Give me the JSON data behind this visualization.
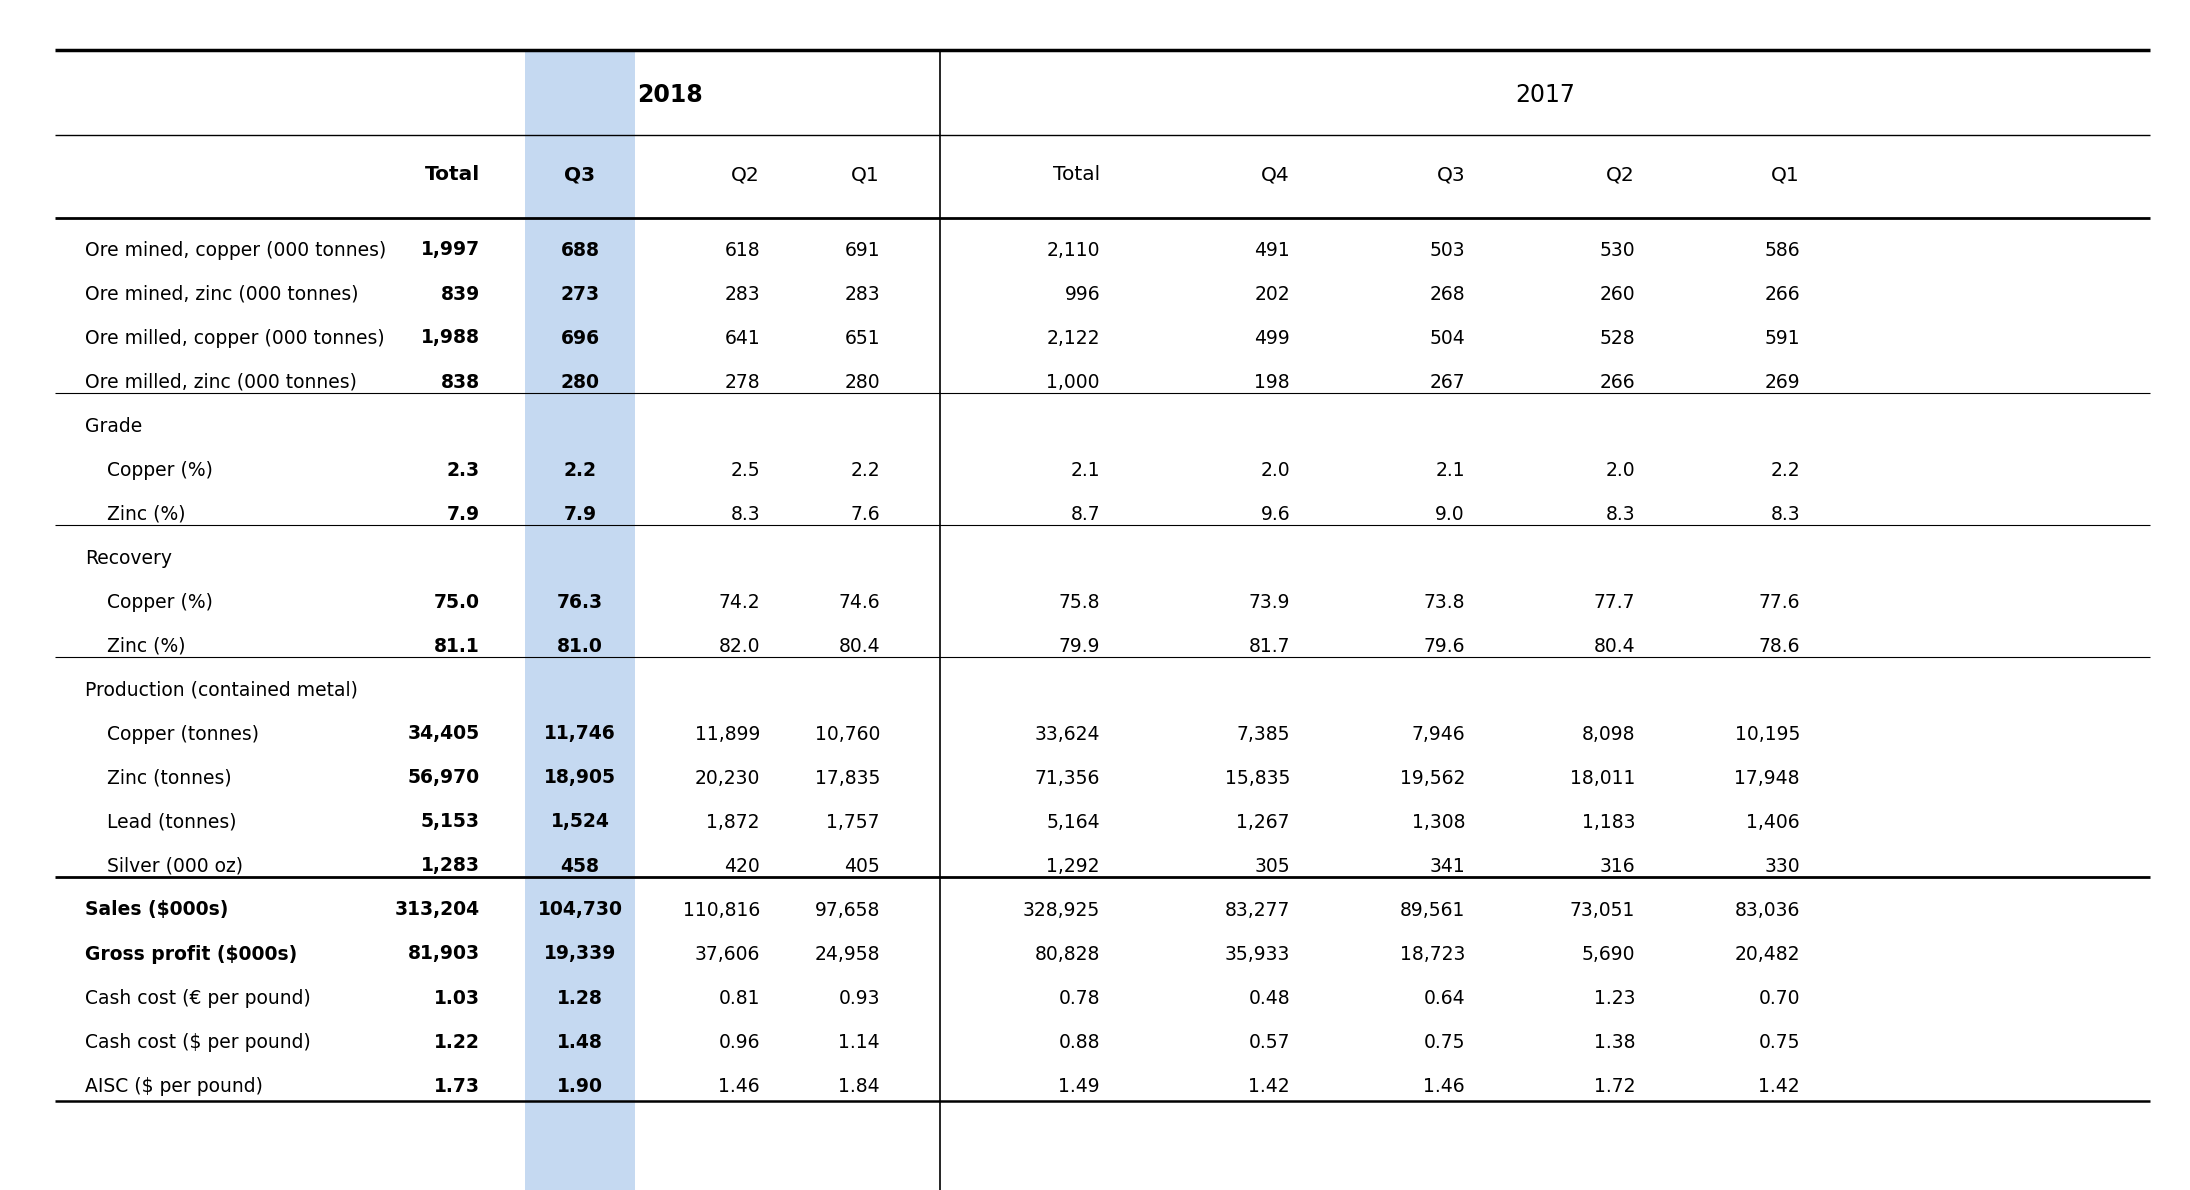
{
  "highlight_color": "#c5d9f1",
  "bg_color": "#ffffff",
  "text_color": "#000000",
  "year_2018": "2018",
  "year_2017": "2017",
  "col_headers": [
    "Total",
    "Q3",
    "Q2",
    "Q1",
    "Total",
    "Q4",
    "Q3",
    "Q2",
    "Q1"
  ],
  "rows": [
    {
      "label": "Ore mined, copper (000 tonnes)",
      "indent": false,
      "section": false,
      "bold_label": false,
      "bold_total": true,
      "bold_q3": true,
      "values": [
        "1,997",
        "688",
        "618",
        "691",
        "2,110",
        "491",
        "503",
        "530",
        "586"
      ]
    },
    {
      "label": "Ore mined, zinc (000 tonnes)",
      "indent": false,
      "section": false,
      "bold_label": false,
      "bold_total": true,
      "bold_q3": true,
      "values": [
        "839",
        "273",
        "283",
        "283",
        "996",
        "202",
        "268",
        "260",
        "266"
      ]
    },
    {
      "label": "Ore milled, copper (000 tonnes)",
      "indent": false,
      "section": false,
      "bold_label": false,
      "bold_total": true,
      "bold_q3": true,
      "values": [
        "1,988",
        "696",
        "641",
        "651",
        "2,122",
        "499",
        "504",
        "528",
        "591"
      ]
    },
    {
      "label": "Ore milled, zinc (000 tonnes)",
      "indent": false,
      "section": false,
      "bold_label": false,
      "bold_total": true,
      "bold_q3": true,
      "values": [
        "838",
        "280",
        "278",
        "280",
        "1,000",
        "198",
        "267",
        "266",
        "269"
      ]
    },
    {
      "label": "Grade",
      "indent": false,
      "section": true,
      "bold_label": false,
      "bold_total": false,
      "bold_q3": false,
      "values": [
        "",
        "",
        "",
        "",
        "",
        "",
        "",
        "",
        ""
      ]
    },
    {
      "label": "Copper (%)",
      "indent": true,
      "section": false,
      "bold_label": false,
      "bold_total": true,
      "bold_q3": true,
      "values": [
        "2.3",
        "2.2",
        "2.5",
        "2.2",
        "2.1",
        "2.0",
        "2.1",
        "2.0",
        "2.2"
      ]
    },
    {
      "label": "Zinc (%)",
      "indent": true,
      "section": false,
      "bold_label": false,
      "bold_total": true,
      "bold_q3": true,
      "values": [
        "7.9",
        "7.9",
        "8.3",
        "7.6",
        "8.7",
        "9.6",
        "9.0",
        "8.3",
        "8.3"
      ]
    },
    {
      "label": "Recovery",
      "indent": false,
      "section": true,
      "bold_label": false,
      "bold_total": false,
      "bold_q3": false,
      "values": [
        "",
        "",
        "",
        "",
        "",
        "",
        "",
        "",
        ""
      ]
    },
    {
      "label": "Copper (%)",
      "indent": true,
      "section": false,
      "bold_label": false,
      "bold_total": true,
      "bold_q3": true,
      "values": [
        "75.0",
        "76.3",
        "74.2",
        "74.6",
        "75.8",
        "73.9",
        "73.8",
        "77.7",
        "77.6"
      ]
    },
    {
      "label": "Zinc (%)",
      "indent": true,
      "section": false,
      "bold_label": false,
      "bold_total": true,
      "bold_q3": true,
      "values": [
        "81.1",
        "81.0",
        "82.0",
        "80.4",
        "79.9",
        "81.7",
        "79.6",
        "80.4",
        "78.6"
      ]
    },
    {
      "label": "Production (contained metal)",
      "indent": false,
      "section": true,
      "bold_label": false,
      "bold_total": false,
      "bold_q3": false,
      "values": [
        "",
        "",
        "",
        "",
        "",
        "",
        "",
        "",
        ""
      ]
    },
    {
      "label": "Copper (tonnes)",
      "indent": true,
      "section": false,
      "bold_label": false,
      "bold_total": true,
      "bold_q3": true,
      "values": [
        "34,405",
        "11,746",
        "11,899",
        "10,760",
        "33,624",
        "7,385",
        "7,946",
        "8,098",
        "10,195"
      ]
    },
    {
      "label": "Zinc (tonnes)",
      "indent": true,
      "section": false,
      "bold_label": false,
      "bold_total": true,
      "bold_q3": true,
      "values": [
        "56,970",
        "18,905",
        "20,230",
        "17,835",
        "71,356",
        "15,835",
        "19,562",
        "18,011",
        "17,948"
      ]
    },
    {
      "label": "Lead (tonnes)",
      "indent": true,
      "section": false,
      "bold_label": false,
      "bold_total": true,
      "bold_q3": true,
      "values": [
        "5,153",
        "1,524",
        "1,872",
        "1,757",
        "5,164",
        "1,267",
        "1,308",
        "1,183",
        "1,406"
      ]
    },
    {
      "label": "Silver (000 oz)",
      "indent": true,
      "section": false,
      "bold_label": false,
      "bold_total": true,
      "bold_q3": true,
      "values": [
        "1,283",
        "458",
        "420",
        "405",
        "1,292",
        "305",
        "341",
        "316",
        "330"
      ]
    },
    {
      "label": "Sales ($000s)",
      "indent": false,
      "section": false,
      "bold_label": true,
      "bold_total": true,
      "bold_q3": true,
      "values": [
        "313,204",
        "104,730",
        "110,816",
        "97,658",
        "328,925",
        "83,277",
        "89,561",
        "73,051",
        "83,036"
      ]
    },
    {
      "label": "Gross profit ($000s)",
      "indent": false,
      "section": false,
      "bold_label": true,
      "bold_total": true,
      "bold_q3": true,
      "values": [
        "81,903",
        "19,339",
        "37,606",
        "24,958",
        "80,828",
        "35,933",
        "18,723",
        "5,690",
        "20,482"
      ]
    },
    {
      "label": "Cash cost (€ per pound)",
      "indent": false,
      "section": false,
      "bold_label": false,
      "bold_total": true,
      "bold_q3": true,
      "values": [
        "1.03",
        "1.28",
        "0.81",
        "0.93",
        "0.78",
        "0.48",
        "0.64",
        "1.23",
        "0.70"
      ]
    },
    {
      "label": "Cash cost ($ per pound)",
      "indent": false,
      "section": false,
      "bold_label": false,
      "bold_total": true,
      "bold_q3": true,
      "values": [
        "1.22",
        "1.48",
        "0.96",
        "1.14",
        "0.88",
        "0.57",
        "0.75",
        "1.38",
        "0.75"
      ]
    },
    {
      "label": "AISC ($ per pound)",
      "indent": false,
      "section": false,
      "bold_label": false,
      "bold_total": true,
      "bold_q3": true,
      "values": [
        "1.73",
        "1.90",
        "1.46",
        "1.84",
        "1.49",
        "1.42",
        "1.46",
        "1.72",
        "1.42"
      ]
    }
  ],
  "thin_line_before_rows": [
    4,
    7,
    10,
    15
  ],
  "thick_line_before_rows": [
    15
  ],
  "thick_line_after_rows": [
    19
  ],
  "figsize": [
    21.9,
    11.9
  ],
  "dpi": 100
}
